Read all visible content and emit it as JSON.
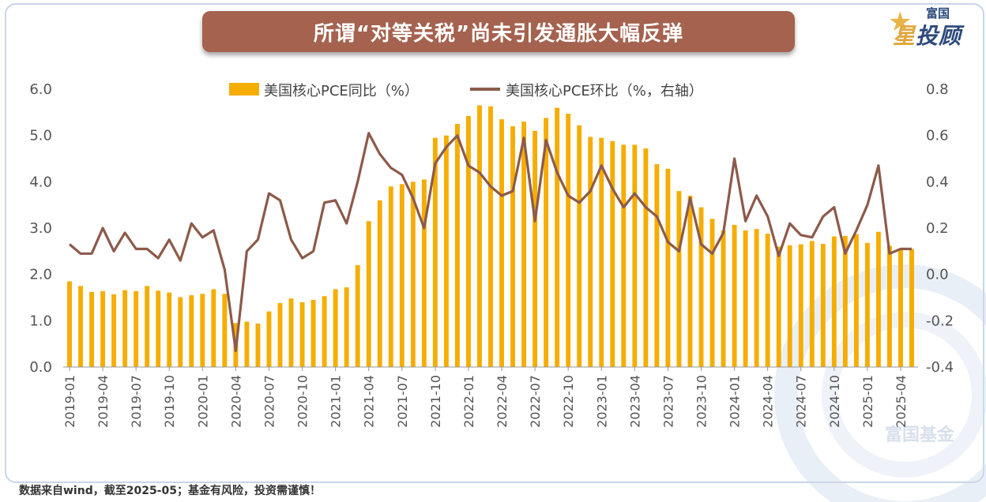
{
  "title": "所谓“对等关税”尚未引发通胀大幅反弹",
  "logo": {
    "top": "富国",
    "main_star": "星",
    "main_rest": "投顾"
  },
  "footnote": "数据来自wind，截至2025-05；基金有风险，投资需谨慎！",
  "watermark": "富国基金",
  "colors": {
    "bar": "#f5ad00",
    "line": "#8c5a4a",
    "banner": "#a4624f",
    "frame": "#c9d6e6"
  },
  "chart_data": {
    "type": "bar",
    "legend_position": "top",
    "grid": false,
    "x_ticks": [
      "2019-01",
      "2019-04",
      "2019-07",
      "2019-10",
      "2020-01",
      "2020-04",
      "2020-07",
      "2020-10",
      "2021-01",
      "2021-04",
      "2021-07",
      "2021-10",
      "2022-01",
      "2022-04",
      "2022-07",
      "2022-10",
      "2023-01",
      "2023-04",
      "2023-07",
      "2023-10",
      "2024-01",
      "2024-04",
      "2024-07",
      "2024-10",
      "2025-01",
      "2025-04"
    ],
    "y_ticks": [
      "0.0",
      "1.0",
      "2.0",
      "3.0",
      "4.0",
      "5.0",
      "6.0"
    ],
    "y2_ticks": [
      "-0.4",
      "-0.2",
      "0.0",
      "0.2",
      "0.4",
      "0.6",
      "0.8"
    ],
    "ylim": [
      0,
      6
    ],
    "y2lim": [
      -0.4,
      0.8
    ],
    "categories": [
      "2019-01",
      "2019-02",
      "2019-03",
      "2019-04",
      "2019-05",
      "2019-06",
      "2019-07",
      "2019-08",
      "2019-09",
      "2019-10",
      "2019-11",
      "2019-12",
      "2020-01",
      "2020-02",
      "2020-03",
      "2020-04",
      "2020-05",
      "2020-06",
      "2020-07",
      "2020-08",
      "2020-09",
      "2020-10",
      "2020-11",
      "2020-12",
      "2021-01",
      "2021-02",
      "2021-03",
      "2021-04",
      "2021-05",
      "2021-06",
      "2021-07",
      "2021-08",
      "2021-09",
      "2021-10",
      "2021-11",
      "2021-12",
      "2022-01",
      "2022-02",
      "2022-03",
      "2022-04",
      "2022-05",
      "2022-06",
      "2022-07",
      "2022-08",
      "2022-09",
      "2022-10",
      "2022-11",
      "2022-12",
      "2023-01",
      "2023-02",
      "2023-03",
      "2023-04",
      "2023-05",
      "2023-06",
      "2023-07",
      "2023-08",
      "2023-09",
      "2023-10",
      "2023-11",
      "2023-12",
      "2024-01",
      "2024-02",
      "2024-03",
      "2024-04",
      "2024-05",
      "2024-06",
      "2024-07",
      "2024-08",
      "2024-09",
      "2024-10",
      "2024-11",
      "2024-12",
      "2025-01",
      "2025-02",
      "2025-03",
      "2025-04",
      "2025-05"
    ],
    "series": [
      {
        "name": "美国核心PCE同比（%）",
        "type": "bar",
        "axis": "left",
        "values": [
          1.85,
          1.75,
          1.62,
          1.64,
          1.57,
          1.66,
          1.64,
          1.75,
          1.65,
          1.61,
          1.51,
          1.55,
          1.58,
          1.68,
          1.58,
          0.95,
          0.98,
          0.94,
          1.2,
          1.38,
          1.48,
          1.4,
          1.45,
          1.53,
          1.68,
          1.72,
          2.2,
          3.15,
          3.6,
          3.9,
          3.95,
          4.0,
          4.05,
          4.95,
          5.0,
          5.25,
          5.42,
          5.65,
          5.63,
          5.35,
          5.2,
          5.3,
          5.1,
          5.38,
          5.6,
          5.47,
          5.22,
          4.97,
          4.95,
          4.88,
          4.8,
          4.8,
          4.72,
          4.38,
          4.28,
          3.8,
          3.7,
          3.45,
          3.2,
          2.95,
          3.07,
          2.95,
          2.98,
          2.88,
          2.6,
          2.63,
          2.65,
          2.72,
          2.66,
          2.82,
          2.83,
          2.87,
          2.68,
          2.92,
          2.62,
          2.55,
          2.55
        ]
      },
      {
        "name": "美国核心PCE环比（%，右轴）",
        "type": "line",
        "axis": "right",
        "values": [
          0.13,
          0.09,
          0.09,
          0.2,
          0.1,
          0.18,
          0.11,
          0.11,
          0.07,
          0.15,
          0.06,
          0.22,
          0.16,
          0.19,
          0.02,
          -0.33,
          0.1,
          0.15,
          0.35,
          0.32,
          0.15,
          0.07,
          0.1,
          0.31,
          0.32,
          0.22,
          0.4,
          0.61,
          0.52,
          0.46,
          0.43,
          0.33,
          0.2,
          0.48,
          0.55,
          0.6,
          0.47,
          0.44,
          0.38,
          0.34,
          0.36,
          0.59,
          0.23,
          0.58,
          0.44,
          0.34,
          0.31,
          0.36,
          0.47,
          0.37,
          0.29,
          0.35,
          0.29,
          0.25,
          0.14,
          0.1,
          0.33,
          0.13,
          0.09,
          0.18,
          0.5,
          0.23,
          0.34,
          0.25,
          0.08,
          0.22,
          0.17,
          0.16,
          0.25,
          0.29,
          0.09,
          0.19,
          0.3,
          0.47,
          0.09,
          0.11,
          0.11
        ]
      }
    ]
  }
}
